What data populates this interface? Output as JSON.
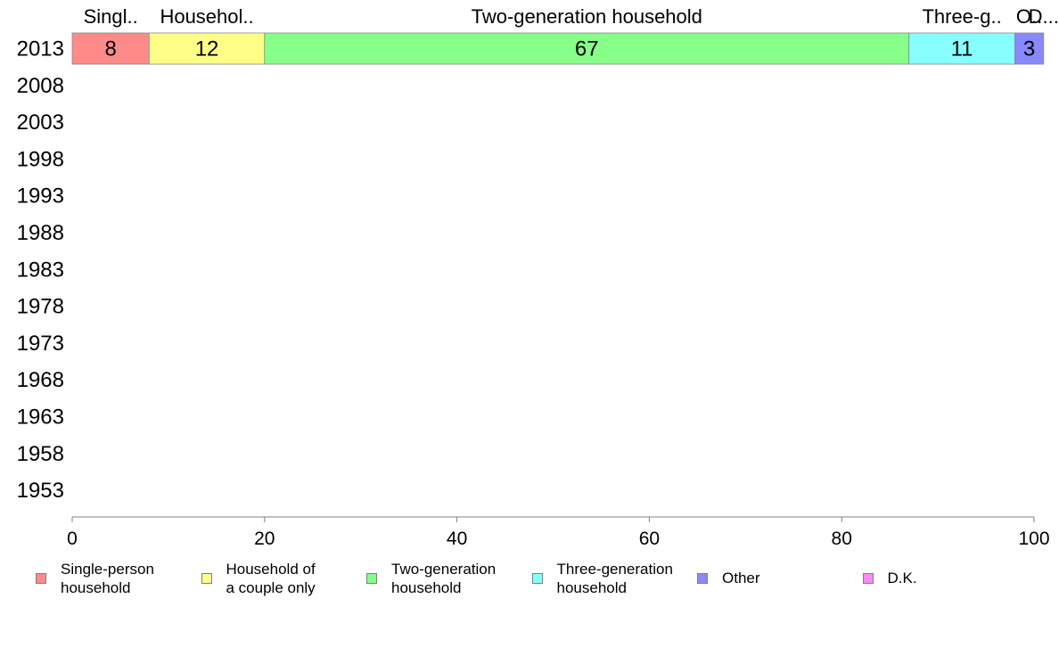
{
  "chart_data": {
    "type": "bar",
    "orientation": "horizontal-stacked-100",
    "categories": [
      "2013",
      "2008",
      "2003",
      "1998",
      "1993",
      "1988",
      "1983",
      "1978",
      "1973",
      "1968",
      "1963",
      "1958",
      "1953"
    ],
    "series": [
      {
        "name": "Single-person household",
        "short": "Singl..",
        "color": "#ff8a8a",
        "values": [
          8,
          null,
          null,
          null,
          null,
          null,
          null,
          null,
          null,
          null,
          null,
          null,
          null
        ]
      },
      {
        "name": "Household of a couple only",
        "short": "Househol..",
        "color": "#ffff88",
        "values": [
          12,
          null,
          null,
          null,
          null,
          null,
          null,
          null,
          null,
          null,
          null,
          null,
          null
        ]
      },
      {
        "name": "Two-generation household",
        "short": "Two-generation household",
        "color": "#88ff88",
        "values": [
          67,
          null,
          null,
          null,
          null,
          null,
          null,
          null,
          null,
          null,
          null,
          null,
          null
        ]
      },
      {
        "name": "Three-generation household",
        "short": "Three-g..",
        "color": "#88ffff",
        "values": [
          11,
          null,
          null,
          null,
          null,
          null,
          null,
          null,
          null,
          null,
          null,
          null,
          null
        ]
      },
      {
        "name": "Other",
        "short": "O..",
        "color": "#8888ff",
        "values": [
          3,
          null,
          null,
          null,
          null,
          null,
          null,
          null,
          null,
          null,
          null,
          null,
          null
        ]
      },
      {
        "name": "D.K.",
        "short": "D...",
        "color": "#ff88ff",
        "values": [
          0,
          null,
          null,
          null,
          null,
          null,
          null,
          null,
          null,
          null,
          null,
          null,
          null
        ]
      }
    ],
    "xlim": [
      0,
      100
    ],
    "xticks": [
      0,
      20,
      40,
      60,
      80,
      100
    ],
    "legend_position": "bottom",
    "grid": false
  },
  "legend": [
    {
      "text": "Single-person\nhousehold",
      "color": "#ff8a8a"
    },
    {
      "text": "Household of\na couple only",
      "color": "#ffff88"
    },
    {
      "text": "Two-generation\nhousehold",
      "color": "#88ff88"
    },
    {
      "text": "Three-generation\nhousehold",
      "color": "#88ffff"
    },
    {
      "text": "Other",
      "color": "#8888ff"
    },
    {
      "text": "D.K.",
      "color": "#ff88ff"
    }
  ]
}
